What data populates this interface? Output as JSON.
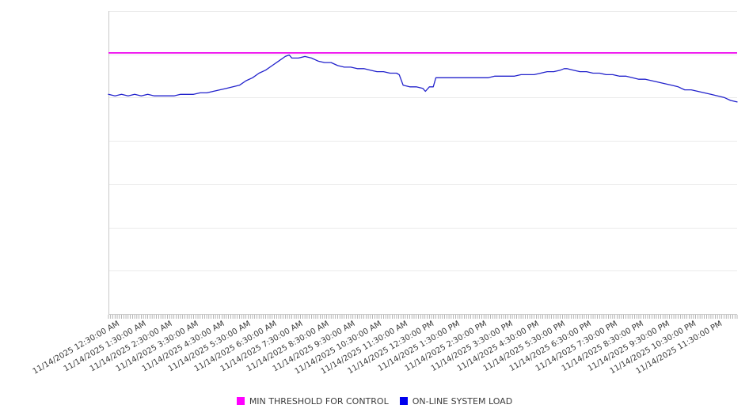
{
  "chart_data": {
    "type": "line",
    "title": "",
    "xlabel": "",
    "ylabel": "",
    "x_axis": {
      "range_hours": [
        0,
        24
      ],
      "date": "11/14/2025",
      "minor_tick_interval_minutes": 5,
      "tick_hours": [
        0.5,
        1.5,
        2.5,
        3.5,
        4.5,
        5.5,
        6.5,
        7.5,
        8.5,
        9.5,
        10.5,
        11.5,
        12.5,
        13.5,
        14.5,
        15.5,
        16.5,
        17.5,
        18.5,
        19.5,
        20.5,
        21.5,
        22.5,
        23.5
      ],
      "tick_labels": [
        "11/14/2025 12:30:00 AM",
        "11/14/2025 1:30:00 AM",
        "11/14/2025 2:30:00 AM",
        "11/14/2025 3:30:00 AM",
        "11/14/2025 4:30:00 AM",
        "11/14/2025 5:30:00 AM",
        "11/14/2025 6:30:00 AM",
        "11/14/2025 7:30:00 AM",
        "11/14/2025 8:30:00 AM",
        "11/14/2025 9:30:00 AM",
        "11/14/2025 10:30:00 AM",
        "11/14/2025 11:30:00 AM",
        "11/14/2025 12:30:00 PM",
        "11/14/2025 1:30:00 PM",
        "11/14/2025 2:30:00 PM",
        "11/14/2025 3:30:00 PM",
        "11/14/2025 4:30:00 PM",
        "11/14/2025 5:30:00 PM",
        "11/14/2025 6:30:00 PM",
        "11/14/2025 7:30:00 PM",
        "11/14/2025 8:30:00 PM",
        "11/14/2025 9:30:00 PM",
        "11/14/2025 10:30:00 PM",
        "11/14/2025 11:30:00 PM"
      ]
    },
    "y_axis": {
      "tick_labels": [],
      "labels_visible": false,
      "min": 0,
      "max": 100,
      "gridline_intervals": 7,
      "grid": "horizontal"
    },
    "legend_position": "bottom",
    "series": [
      {
        "name": "MIN THRESHOLD FOR CONTROL",
        "color": "#ff00ff",
        "line_color": "#ee00ee",
        "type": "threshold",
        "value": 86.2
      },
      {
        "name": "ON-LINE SYSTEM LOAD",
        "color": "#0000ee",
        "line_color": "#2222cc",
        "type": "line",
        "x_hours": [
          0,
          0.25,
          0.5,
          0.75,
          1,
          1.25,
          1.5,
          1.75,
          2,
          2.25,
          2.5,
          2.75,
          3,
          3.25,
          3.5,
          3.75,
          4,
          4.25,
          4.5,
          4.75,
          5,
          5.25,
          5.5,
          5.75,
          6,
          6.25,
          6.5,
          6.75,
          6.9,
          7,
          7.25,
          7.5,
          7.75,
          8,
          8.25,
          8.5,
          8.75,
          9,
          9.25,
          9.5,
          9.75,
          10,
          10.25,
          10.5,
          10.75,
          11,
          11.1,
          11.25,
          11.5,
          11.75,
          12,
          12.1,
          12.25,
          12.4,
          12.5,
          12.75,
          13,
          13.25,
          13.5,
          13.75,
          14,
          14.25,
          14.5,
          14.75,
          15,
          15.25,
          15.5,
          15.75,
          16,
          16.25,
          16.5,
          16.75,
          17,
          17.25,
          17.4,
          17.5,
          17.75,
          18,
          18.25,
          18.5,
          18.75,
          19,
          19.25,
          19.5,
          19.75,
          20,
          20.25,
          20.5,
          20.75,
          21,
          21.25,
          21.5,
          21.75,
          22,
          22.25,
          22.5,
          22.75,
          23,
          23.25,
          23.5,
          23.75,
          24
        ],
        "values": [
          72.5,
          72,
          72.5,
          72,
          72.5,
          72,
          72.5,
          72,
          72,
          72,
          72,
          72.5,
          72.5,
          72.5,
          73,
          73,
          73.5,
          74,
          74.5,
          75,
          75.5,
          77,
          78,
          79.5,
          80.5,
          82,
          83.5,
          85,
          85.5,
          84.5,
          84.5,
          85,
          84.5,
          83.5,
          83,
          83,
          82,
          81.5,
          81.5,
          81,
          81,
          80.5,
          80,
          80,
          79.5,
          79.5,
          79,
          75.5,
          75,
          75,
          74.5,
          73.5,
          75,
          75,
          78,
          78,
          78,
          78,
          78,
          78,
          78,
          78,
          78,
          78.5,
          78.5,
          78.5,
          78.5,
          79,
          79,
          79,
          79.5,
          80,
          80,
          80.5,
          81,
          81,
          80.5,
          80,
          80,
          79.5,
          79.5,
          79,
          79,
          78.5,
          78.5,
          78,
          77.5,
          77.5,
          77,
          76.5,
          76,
          75.5,
          75,
          74,
          74,
          73.5,
          73,
          72.5,
          72,
          71.5,
          70.5,
          70
        ]
      }
    ]
  },
  "legend": {
    "items": [
      {
        "label": "MIN THRESHOLD FOR CONTROL",
        "color": "#ff00ff"
      },
      {
        "label": "ON-LINE SYSTEM LOAD",
        "color": "#0000ee"
      }
    ]
  },
  "colors": {
    "grid": "#ebebeb",
    "axis": "#c9c9c9",
    "tick": "#949494",
    "label_text": "#3a3a3a"
  }
}
